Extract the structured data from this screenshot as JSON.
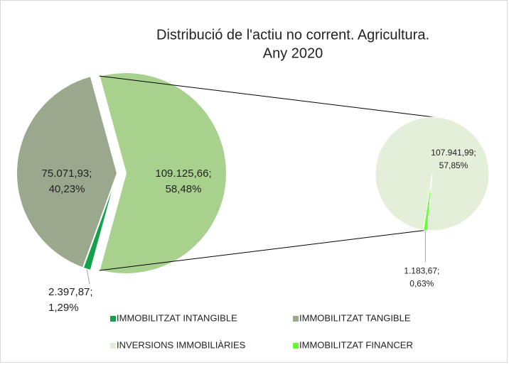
{
  "chart_data": {
    "type": "pie-of-pie",
    "title": [
      "Distribució de l'actiu no corrent. Agricultura.",
      "Any 2020"
    ],
    "primary": {
      "names": [
        "IMMOBILITZAT INTANGIBLE",
        "IMMOBILITZAT TANGIBLE",
        null
      ],
      "colors": [
        "#13a14b",
        "#9aa98e",
        "#a9d18e"
      ],
      "values": [
        2397.87,
        75071.93,
        109125.66
      ],
      "value_labels": [
        "2.397,87",
        "75.071,93",
        "109.125,66"
      ],
      "percents": [
        1.29,
        40.23,
        58.48
      ],
      "percent_labels": [
        "1,29%",
        "40,23%",
        "58,48%"
      ]
    },
    "secondary": {
      "names": [
        "INVERSIONS IMMOBILIÀRIES",
        "IMMOBILITZAT FINANCER"
      ],
      "colors": [
        "#e3efd9",
        "#66ff33"
      ],
      "values": [
        107941.99,
        1183.67
      ],
      "value_labels": [
        "107.941,99",
        "1.183,67"
      ],
      "percents": [
        57.85,
        0.63
      ],
      "percent_labels": [
        "57,85%",
        "0,63%"
      ]
    },
    "legend": "bottom"
  }
}
